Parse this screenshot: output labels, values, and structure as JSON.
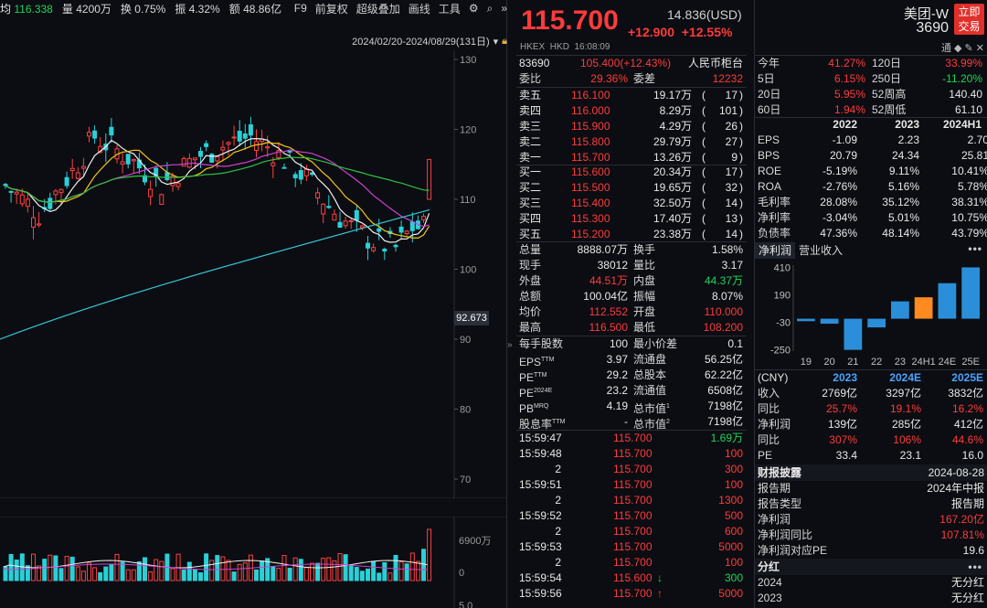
{
  "chart_header": {
    "avg_label": "均",
    "avg_value": "116.338",
    "vol_label": "量",
    "vol_value": "4200万",
    "turnover_label": "换",
    "turnover_value": "0.75%",
    "amp_label": "振",
    "amp_value": "4.32%",
    "amount_label": "额",
    "amount_value": "48.86亿",
    "tools": [
      "F9",
      "前复权",
      "超级叠加",
      "画线",
      "工具"
    ],
    "date_range": "2024/02/20-2024/08/29(131日)",
    "price_tag": "92.673",
    "y_ticks": [
      "130",
      "120",
      "110",
      "100",
      "90",
      "80",
      "70"
    ],
    "vol_ticks": [
      "6900万",
      "0",
      "5.0"
    ]
  },
  "quote": {
    "price": "115.700",
    "usd_price": "14.836(USD)",
    "change": "+12.900",
    "change_pct": "+12.55%",
    "exchange": "HKEX",
    "currency": "HKD",
    "time": "16:08:09",
    "rmb_code": "83690",
    "rmb_quote": "105.400(+12.43%)",
    "rmb_counter": "人民币柜台",
    "wei_bi_label": "委比",
    "wei_bi": "29.36%",
    "wei_cha_label": "委差",
    "wei_cha": "12232",
    "asks": [
      {
        "label": "卖五",
        "price": "116.100",
        "vol": "19.17万",
        "n": "17"
      },
      {
        "label": "卖四",
        "price": "116.000",
        "vol": "8.29万",
        "n": "101"
      },
      {
        "label": "卖三",
        "price": "115.900",
        "vol": "4.29万",
        "n": "26"
      },
      {
        "label": "卖二",
        "price": "115.800",
        "vol": "29.79万",
        "n": "27"
      },
      {
        "label": "卖一",
        "price": "115.700",
        "vol": "13.26万",
        "n": "9"
      }
    ],
    "bids": [
      {
        "label": "买一",
        "price": "115.600",
        "vol": "20.34万",
        "n": "17"
      },
      {
        "label": "买二",
        "price": "115.500",
        "vol": "19.65万",
        "n": "32"
      },
      {
        "label": "买三",
        "price": "115.400",
        "vol": "32.50万",
        "n": "14"
      },
      {
        "label": "买四",
        "price": "115.300",
        "vol": "17.40万",
        "n": "13"
      },
      {
        "label": "买五",
        "price": "115.200",
        "vol": "23.38万",
        "n": "14"
      }
    ],
    "stats": [
      {
        "l1": "总量",
        "v1": "8888.07万",
        "c1": "white",
        "l2": "换手",
        "v2": "1.58%",
        "c2": "white"
      },
      {
        "l1": "现手",
        "v1": "38012",
        "c1": "white",
        "l2": "量比",
        "v2": "3.17",
        "c2": "white"
      },
      {
        "l1": "外盘",
        "v1": "44.51万",
        "c1": "red",
        "l2": "内盘",
        "v2": "44.37万",
        "c2": "green"
      },
      {
        "l1": "总额",
        "v1": "100.04亿",
        "c1": "white",
        "l2": "振幅",
        "v2": "8.07%",
        "c2": "white"
      },
      {
        "l1": "均价",
        "v1": "112.552",
        "c1": "red",
        "l2": "开盘",
        "v2": "110.000",
        "c2": "red"
      },
      {
        "l1": "最高",
        "v1": "116.500",
        "c1": "red",
        "l2": "最低",
        "v2": "108.200",
        "c2": "red"
      }
    ],
    "stats2": [
      {
        "l1": "每手股数",
        "v1": "100",
        "l2": "最小价差",
        "v2": "0.1"
      },
      {
        "l1": "EPS",
        "s1": "TTM",
        "v1": "3.97",
        "l2": "流通盘",
        "v2": "56.25亿"
      },
      {
        "l1": "PE",
        "s1": "TTM",
        "v1": "29.2",
        "l2": "总股本",
        "v2": "62.22亿"
      },
      {
        "l1": "PE",
        "s1": "2024E",
        "v1": "23.2",
        "l2": "流通值",
        "v2": "6508亿"
      },
      {
        "l1": "PB",
        "s1": "MRQ",
        "v1": "4.19",
        "l2": "总市值",
        "s2": "1",
        "v2": "7198亿"
      },
      {
        "l1": "股息率",
        "s1": "TTM",
        "v1": "-",
        "l2": "总市值",
        "s2": "2",
        "v2": "7198亿"
      }
    ],
    "ticks": [
      {
        "t": "15:59:47",
        "p": "115.700",
        "v": "1.69万",
        "vc": "green",
        "arrow": ""
      },
      {
        "t": "15:59:48",
        "p": "115.700",
        "v": "100",
        "vc": "red",
        "arrow": ""
      },
      {
        "t": "2",
        "p": "115.700",
        "v": "300",
        "vc": "red",
        "arrow": ""
      },
      {
        "t": "15:59:51",
        "p": "115.700",
        "v": "100",
        "vc": "red",
        "arrow": ""
      },
      {
        "t": "2",
        "p": "115.700",
        "v": "1300",
        "vc": "red",
        "arrow": ""
      },
      {
        "t": "15:59:52",
        "p": "115.700",
        "v": "500",
        "vc": "red",
        "arrow": ""
      },
      {
        "t": "2",
        "p": "115.700",
        "v": "600",
        "vc": "red",
        "arrow": ""
      },
      {
        "t": "15:59:53",
        "p": "115.700",
        "v": "5000",
        "vc": "red",
        "arrow": ""
      },
      {
        "t": "2",
        "p": "115.700",
        "v": "100",
        "vc": "red",
        "arrow": ""
      },
      {
        "t": "15:59:54",
        "p": "115.600",
        "v": "300",
        "vc": "green",
        "arrow": "↓"
      },
      {
        "t": "15:59:56",
        "p": "115.700",
        "v": "5000",
        "vc": "red",
        "arrow": "↑"
      }
    ]
  },
  "profile": {
    "name": "美团-W",
    "code": "3690",
    "trade_button": [
      "立即",
      "交易"
    ],
    "icons": "通 ◆ ✎ ✕",
    "returns": [
      {
        "l1": "今年",
        "v1": "41.27%",
        "c1": "red",
        "l2": "120日",
        "v2": "33.99%",
        "c2": "red"
      },
      {
        "l1": "5日",
        "v1": "6.15%",
        "c1": "red",
        "l2": "250日",
        "v2": "-11.20%",
        "c2": "green"
      },
      {
        "l1": "20日",
        "v1": "5.95%",
        "c1": "red",
        "l2": "52周高",
        "v2": "140.40",
        "c2": "white"
      },
      {
        "l1": "60日",
        "v1": "1.94%",
        "c1": "red",
        "l2": "52周低",
        "v2": "61.10",
        "c2": "white"
      }
    ],
    "fin_years": [
      "2022",
      "2023",
      "2024H1"
    ],
    "fin_rows": [
      {
        "label": "EPS",
        "v": [
          "-1.09",
          "2.23",
          "2.70"
        ]
      },
      {
        "label": "BPS",
        "v": [
          "20.79",
          "24.34",
          "25.81"
        ]
      },
      {
        "label": "ROE",
        "v": [
          "-5.19%",
          "9.11%",
          "10.41%"
        ]
      },
      {
        "label": "ROA",
        "v": [
          "-2.76%",
          "5.16%",
          "5.78%"
        ]
      },
      {
        "label": "毛利率",
        "v": [
          "28.08%",
          "35.12%",
          "38.31%"
        ]
      },
      {
        "label": "净利率",
        "v": [
          "-3.04%",
          "5.01%",
          "10.75%"
        ]
      },
      {
        "label": "负债率",
        "v": [
          "47.36%",
          "48.14%",
          "43.79%"
        ]
      }
    ],
    "tab_active": "净利润",
    "tab_other": "营业收入",
    "chart_data": {
      "type": "bar",
      "categories": [
        "19",
        "20",
        "21",
        "22",
        "23",
        "24H1",
        "24E",
        "25E"
      ],
      "values": [
        -20,
        -40,
        -250,
        -70,
        139,
        172,
        285,
        412
      ],
      "y_ticks": [
        "410",
        "190",
        "-30",
        "-250"
      ],
      "ylim": [
        -260,
        430
      ],
      "colors": [
        "#2a8fd8",
        "#2a8fd8",
        "#2a8fd8",
        "#2a8fd8",
        "#2a8fd8",
        "#ff8a1f",
        "#2a8fd8",
        "#2a8fd8"
      ]
    },
    "forecast_header": {
      "label": "(CNY)",
      "y1": "2023",
      "y2": "2024E",
      "y3": "2025E"
    },
    "forecast_rows": [
      {
        "label": "收入",
        "v": [
          "2769亿",
          "3297亿",
          "3832亿"
        ],
        "c": "white"
      },
      {
        "label": "同比",
        "v": [
          "25.7%",
          "19.1%",
          "16.2%"
        ],
        "c": "red"
      },
      {
        "label": "净利润",
        "v": [
          "139亿",
          "285亿",
          "412亿"
        ],
        "c": "white"
      },
      {
        "label": "同比",
        "v": [
          "307%",
          "106%",
          "44.6%"
        ],
        "c": "red"
      },
      {
        "label": "PE",
        "v": [
          "33.4",
          "23.1",
          "16.0"
        ],
        "c": "white"
      }
    ],
    "report": {
      "title": "财报披露",
      "date": "2024-08-28",
      "period_label": "报告期",
      "period": "2024年中报",
      "type_label": "报告类型",
      "type": "报告期",
      "np_label": "净利润",
      "np": "167.20亿",
      "yoy_label": "净利润同比",
      "yoy": "107.81%",
      "pe_label": "净利润对应PE",
      "pe": "19.6"
    },
    "dividend": {
      "title": "分红",
      "rows": [
        {
          "y": "2024",
          "v": "无分红"
        },
        {
          "y": "2023",
          "v": "无分红"
        }
      ]
    }
  }
}
